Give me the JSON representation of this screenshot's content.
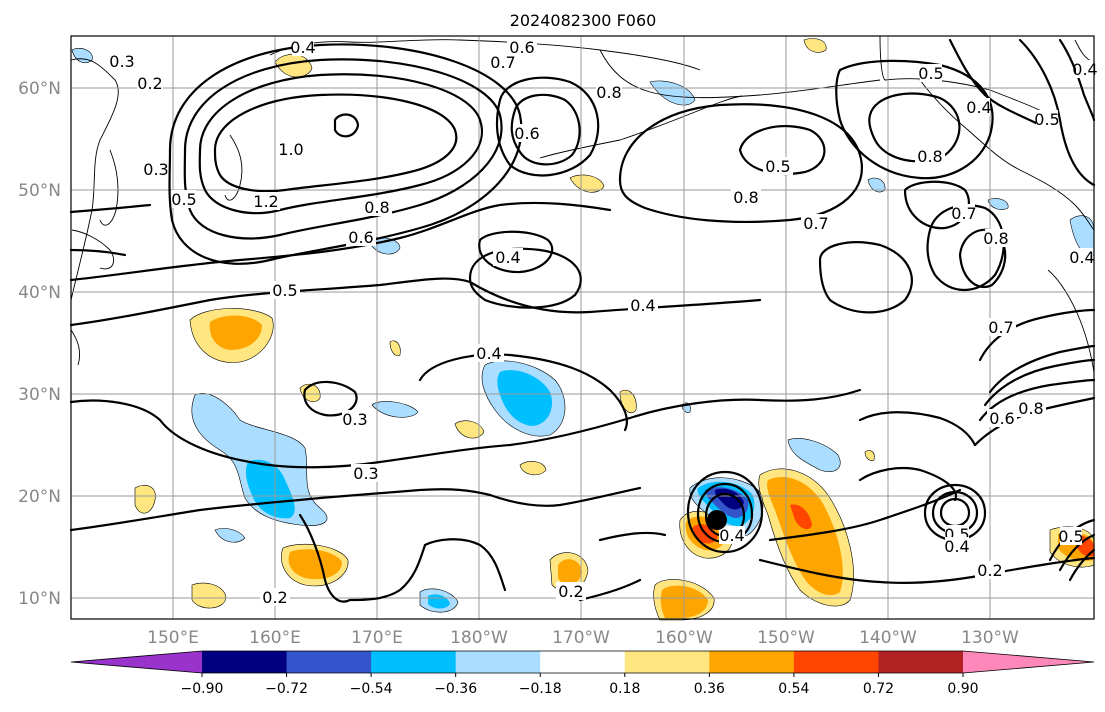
{
  "title": "2024082300 F060",
  "lat_labels": [
    "60°N",
    "50°N",
    "40°N",
    "30°N",
    "20°N",
    "10°N"
  ],
  "lon_labels": [
    "150°E",
    "160°E",
    "170°E",
    "180°W",
    "170°W",
    "160°W",
    "150°W",
    "140°W",
    "130°W"
  ],
  "colorbar": {
    "ticks": [
      "−0.90",
      "−0.72",
      "−0.54",
      "−0.36",
      "−0.18",
      "0.18",
      "0.36",
      "0.54",
      "0.72",
      "0.90"
    ],
    "colors": [
      "#9933cc",
      "#000080",
      "#3355cc",
      "#00bfff",
      "#aaddff",
      "#ffffff",
      "#ffe680",
      "#ffa500",
      "#ff4500",
      "#b22222",
      "#ff88bb"
    ]
  },
  "contour_labels": [
    "0.3",
    "0.2",
    "0.4",
    "0.6",
    "0.7",
    "0.8",
    "1.0",
    "1.2",
    "0.5",
    "0.3",
    "0.5",
    "0.6",
    "0.8",
    "0.8",
    "0.7",
    "0.8",
    "0.4",
    "0.5",
    "0.5",
    "0.4",
    "0.7",
    "0.6",
    "0.8",
    "0.4",
    "0.5",
    "0.4",
    "0.4",
    "0.3",
    "0.3",
    "0.2",
    "0.4",
    "0.2",
    "0.6",
    "0.8",
    "0.7",
    "0.5",
    "0.4",
    "0.2",
    "0.5",
    "0.4"
  ],
  "marker": {
    "lon": -155.5,
    "lat": 17.5
  },
  "map_extent": {
    "lon_min": 140,
    "lon_max": 240,
    "lat_min": 8,
    "lat_max": 65
  }
}
